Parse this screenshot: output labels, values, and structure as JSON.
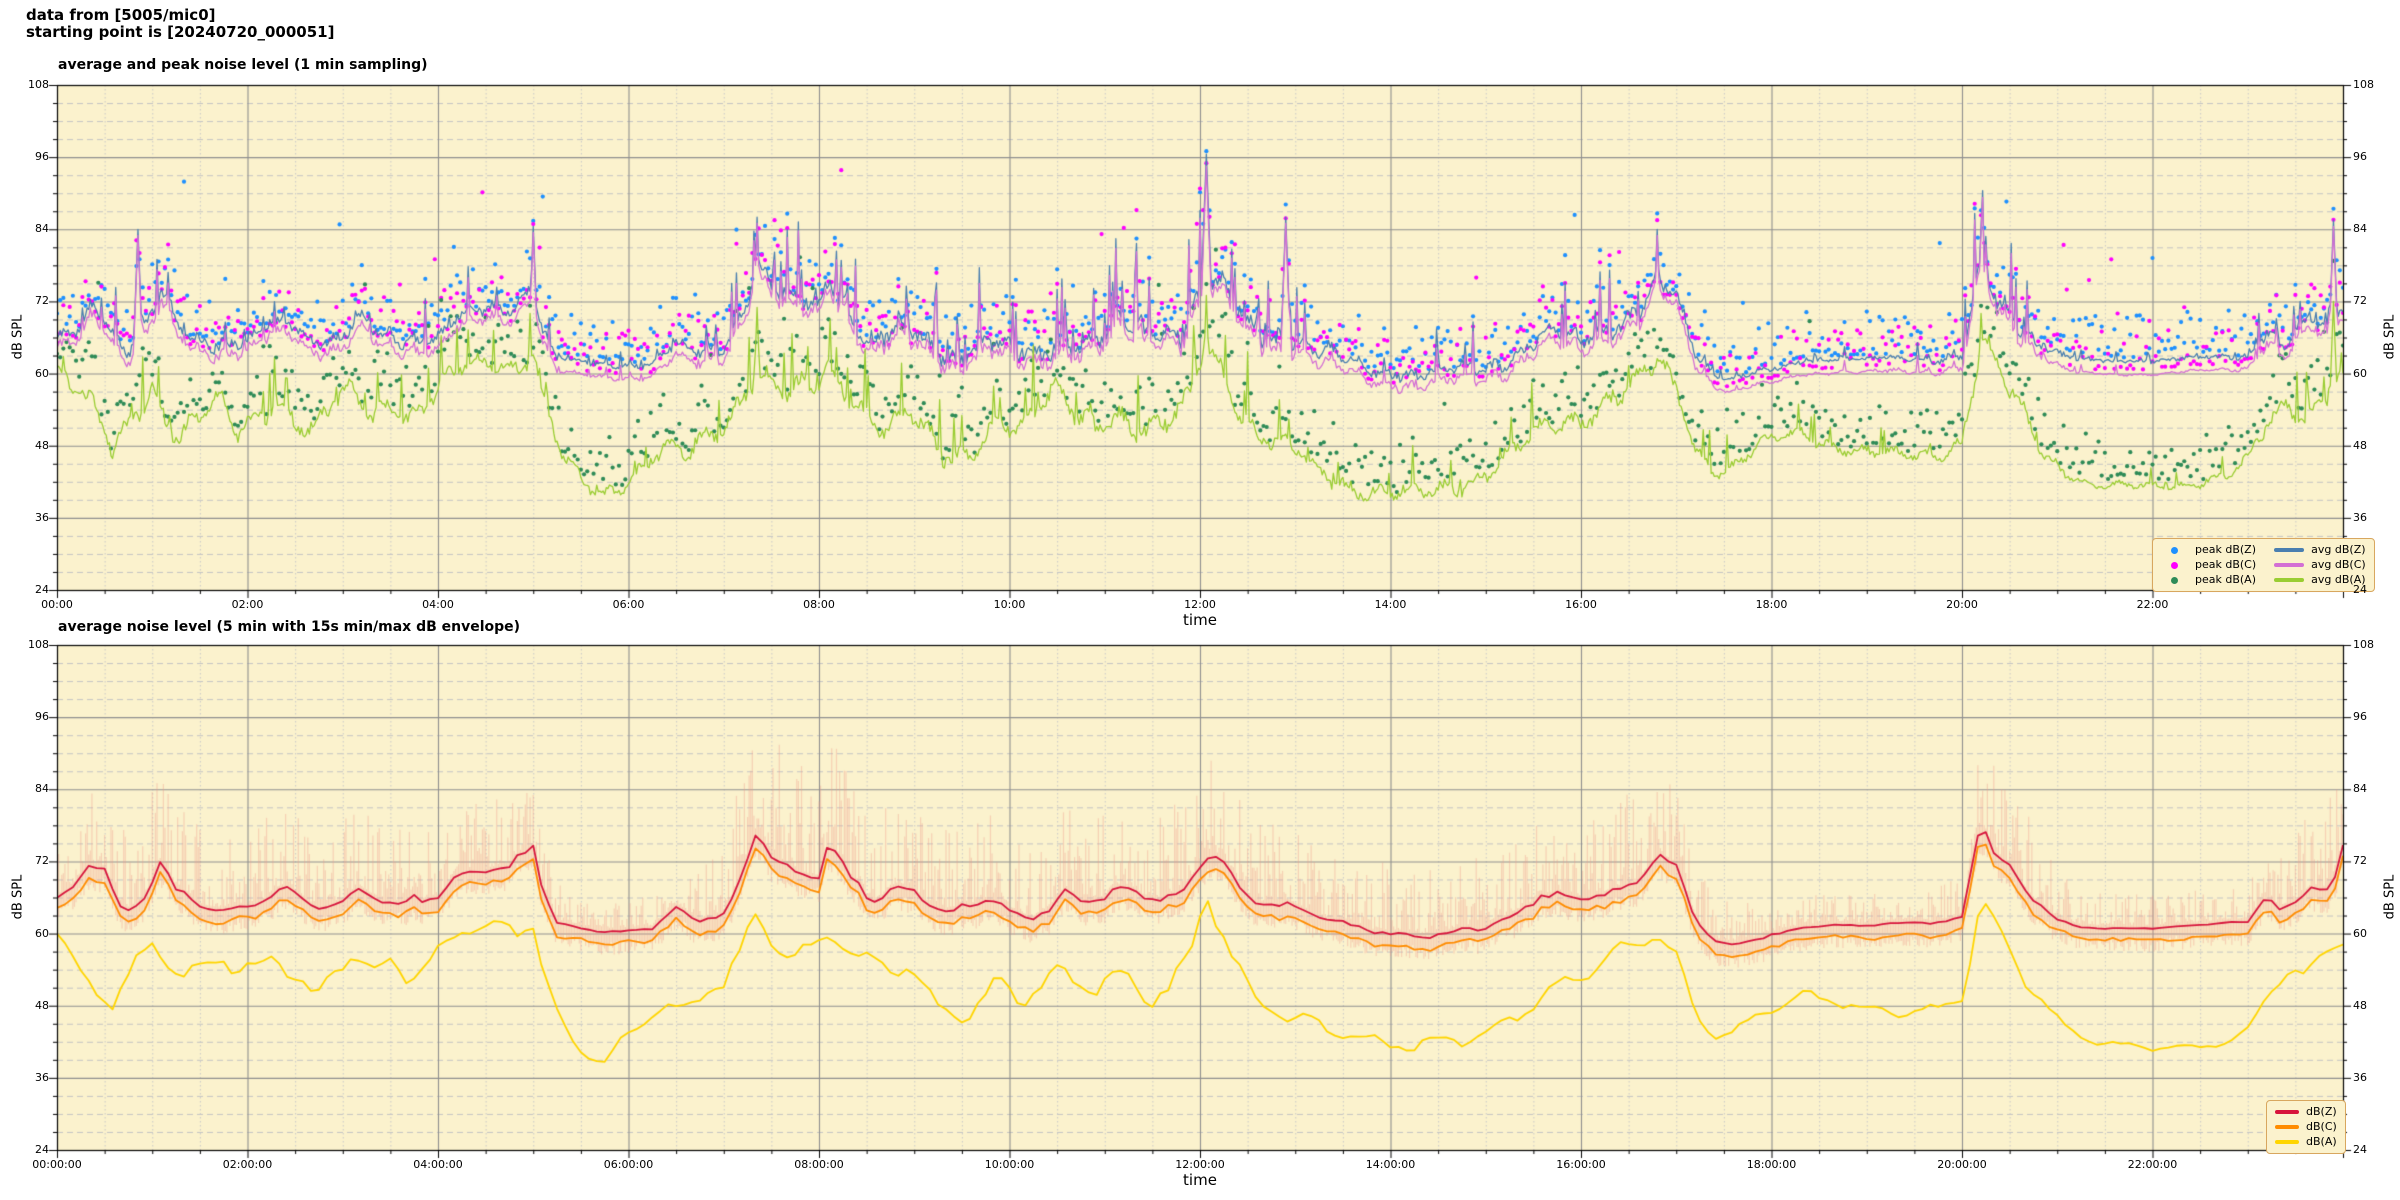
{
  "header": {
    "line1": "data from [5005/mic0]",
    "line2": "starting point is [20240720_000051]"
  },
  "palette": {
    "figure_bg": "#ffffff",
    "plot_bg": "#fbf2cd",
    "grid_major": "#8f8f8f",
    "grid_minor_h": "#c4c4c4",
    "grid_minor_v": "#c9c9c9",
    "axis": "#000000",
    "legend_bg": "#fbf2cd",
    "legend_border": "#d8a75f",
    "envelope": "#ee9a8c"
  },
  "profiles": {
    "avg_dbz": {
      "hours": [
        0,
        0.2,
        0.35,
        0.5,
        0.7,
        0.9,
        1.1,
        1.25,
        1.5,
        1.75,
        2,
        2.2,
        2.4,
        2.6,
        2.8,
        3,
        3.2,
        3.4,
        3.6,
        3.8,
        4,
        4.2,
        4.5,
        4.8,
        5,
        5.1,
        5.25,
        5.5,
        5.75,
        6,
        6.25,
        6.5,
        6.7,
        7,
        7.2,
        7.35,
        7.5,
        7.7,
        7.85,
        8,
        8.1,
        8.25,
        8.4,
        8.6,
        8.8,
        9,
        9.2,
        9.4,
        9.6,
        9.8,
        10,
        10.2,
        10.4,
        10.6,
        10.8,
        11,
        11.2,
        11.4,
        11.6,
        11.8,
        12,
        12.1,
        12.25,
        12.4,
        12.6,
        12.8,
        13,
        13.2,
        13.5,
        13.8,
        14,
        14.3,
        14.6,
        15,
        15.3,
        15.5,
        15.7,
        16,
        16.3,
        16.6,
        16.8,
        17,
        17.2,
        17.4,
        17.6,
        17.8,
        18,
        18.3,
        18.6,
        19,
        19.4,
        19.8,
        20,
        20.2,
        20.35,
        20.5,
        20.7,
        20.9,
        21,
        21.2,
        21.5,
        22,
        22.5,
        23,
        23.2,
        23.35,
        23.5,
        23.7,
        23.85,
        24
      ],
      "db": [
        66,
        68,
        72.5,
        71,
        64,
        66,
        73.5,
        68,
        65.5,
        64.5,
        64.5,
        66.5,
        68,
        66,
        65,
        66,
        68.5,
        66,
        65.5,
        66,
        66.5,
        70,
        71,
        71.5,
        75.5,
        68,
        62.5,
        61.5,
        61,
        61,
        61.5,
        64.5,
        62.5,
        63.5,
        70,
        78,
        74,
        71.5,
        70.5,
        70.5,
        76,
        72,
        68,
        66,
        67.5,
        67,
        65,
        64,
        65.5,
        67,
        64.5,
        63.5,
        65,
        67,
        65.5,
        66.5,
        68,
        66,
        66.5,
        67,
        72.5,
        74.5,
        73,
        69,
        66,
        65.5,
        65,
        63.5,
        62,
        61,
        60.5,
        60,
        61,
        62,
        63.5,
        65.5,
        67,
        66,
        67.5,
        69,
        74.5,
        72,
        63,
        59.5,
        58.5,
        59.5,
        60,
        61.5,
        62,
        62,
        62.5,
        62.5,
        63,
        79.5,
        73,
        71,
        67,
        64.5,
        63,
        61.8,
        61.5,
        61.5,
        62,
        62.5,
        67,
        64.5,
        66,
        69.5,
        68,
        73
      ]
    },
    "avg_dba": {
      "hours": [
        0,
        0.2,
        0.4,
        0.6,
        0.8,
        1,
        1.15,
        1.3,
        1.5,
        1.7,
        1.9,
        2.1,
        2.3,
        2.5,
        2.7,
        2.9,
        3.1,
        3.3,
        3.5,
        3.7,
        3.9,
        4.1,
        4.3,
        4.6,
        4.85,
        5,
        5.1,
        5.3,
        5.5,
        5.75,
        6,
        6.2,
        6.4,
        6.6,
        6.8,
        7,
        7.2,
        7.35,
        7.5,
        7.7,
        7.9,
        8.1,
        8.3,
        8.5,
        8.7,
        8.9,
        9.1,
        9.3,
        9.5,
        9.7,
        9.9,
        10.1,
        10.3,
        10.5,
        10.7,
        10.9,
        11.1,
        11.3,
        11.5,
        11.7,
        11.9,
        12.05,
        12.2,
        12.4,
        12.6,
        12.8,
        13,
        13.3,
        13.6,
        13.9,
        14.2,
        14.5,
        14.8,
        15.1,
        15.4,
        15.7,
        16,
        16.3,
        16.6,
        16.8,
        17,
        17.2,
        17.4,
        17.6,
        17.8,
        18,
        18.3,
        18.6,
        19,
        19.4,
        19.8,
        20,
        20.2,
        20.35,
        20.5,
        20.7,
        20.9,
        21.1,
        21.4,
        21.7,
        22,
        22.4,
        22.8,
        23,
        23.2,
        23.4,
        23.6,
        23.8,
        24
      ],
      "db": [
        59.5,
        57,
        53,
        47.5,
        55,
        59,
        54,
        50,
        53.5,
        56,
        52,
        54.5,
        57.5,
        53,
        50,
        55,
        57,
        53.5,
        55.5,
        52,
        54,
        57.5,
        60.5,
        61.5,
        60.5,
        62.5,
        55,
        45,
        41,
        39.5,
        42.5,
        45.5,
        48,
        46,
        49,
        52,
        58,
        63,
        60,
        57.5,
        58.5,
        61,
        59,
        55,
        52.5,
        54,
        50,
        45.5,
        46,
        49,
        53,
        50,
        52.5,
        55,
        52,
        50.5,
        53,
        50,
        48,
        50.5,
        54,
        66.5,
        62,
        55,
        50,
        48,
        47,
        44.5,
        42.5,
        41,
        40.5,
        41.5,
        43,
        45,
        48,
        51,
        52.5,
        55,
        57,
        60,
        56,
        47,
        43.5,
        44,
        46.5,
        48,
        50,
        48.5,
        47,
        46.5,
        48,
        50,
        67.5,
        62,
        58,
        52,
        47,
        44,
        41.5,
        41,
        41,
        41.5,
        42.5,
        44,
        50,
        54,
        52,
        56,
        58.5
      ]
    },
    "spikiness_c": {
      "hours": [
        0,
        0.5,
        1,
        2,
        3,
        4,
        4.7,
        5.05,
        5.3,
        6,
        6.6,
        7,
        7.5,
        8,
        9,
        10,
        11,
        11.9,
        12.3,
        12.8,
        13.2,
        14,
        15,
        16,
        16.8,
        17.2,
        17.6,
        18,
        19,
        19.95,
        20.15,
        20.8,
        21.1,
        21.5,
        22,
        22.8,
        23.15,
        23.5,
        24
      ],
      "values": [
        0.65,
        0.6,
        0.6,
        0.55,
        0.5,
        0.5,
        0.55,
        0.5,
        0.18,
        0.2,
        0.4,
        0.6,
        0.8,
        0.85,
        0.8,
        0.75,
        0.8,
        0.95,
        0.9,
        0.7,
        0.55,
        0.45,
        0.55,
        0.65,
        0.75,
        0.4,
        0.2,
        0.15,
        0.15,
        0.3,
        0.95,
        0.6,
        0.15,
        0.1,
        0.1,
        0.12,
        0.5,
        0.65,
        0.75
      ]
    },
    "spikiness_a": {
      "hours": [
        0,
        0.5,
        1,
        2,
        3,
        4,
        4.7,
        5.05,
        5.3,
        6,
        6.6,
        7,
        7.5,
        8,
        9,
        10,
        11,
        11.9,
        12.3,
        12.8,
        13.2,
        14,
        15,
        16,
        16.8,
        17.2,
        17.6,
        18,
        19,
        19.95,
        20.15,
        20.8,
        21.1,
        21.5,
        22,
        22.8,
        23.15,
        23.5,
        24
      ],
      "values": [
        0.75,
        0.7,
        0.7,
        0.7,
        0.65,
        0.6,
        0.5,
        0.5,
        0.5,
        0.5,
        0.55,
        0.65,
        0.8,
        0.8,
        0.75,
        0.7,
        0.75,
        0.9,
        0.85,
        0.7,
        0.6,
        0.5,
        0.55,
        0.65,
        0.7,
        0.5,
        0.4,
        0.4,
        0.35,
        0.4,
        0.9,
        0.6,
        0.3,
        0.25,
        0.25,
        0.3,
        0.55,
        0.6,
        0.7
      ]
    },
    "envelope_amp": {
      "hours": [
        0,
        1,
        2,
        3,
        4,
        5,
        5.4,
        6.5,
        7,
        7.4,
        8,
        8.6,
        9.5,
        10.5,
        11.5,
        12.2,
        13,
        14,
        15,
        16,
        16.8,
        17.4,
        18,
        19,
        20,
        20.3,
        21,
        22,
        23,
        23.5,
        24
      ],
      "values": [
        16,
        15,
        13,
        13,
        12,
        12,
        4,
        5,
        12,
        20,
        18,
        16,
        14,
        13,
        15,
        17,
        12,
        11,
        12,
        14,
        15,
        7,
        5,
        5,
        6,
        20,
        8,
        5,
        6,
        12,
        15
      ]
    },
    "events_avg_dbz": [
      [
        0.85,
        84
      ],
      [
        5.0,
        84.5
      ],
      [
        7.35,
        86
      ],
      [
        12.07,
        96.5
      ],
      [
        12.9,
        86
      ],
      [
        16.8,
        84
      ],
      [
        20.2,
        84.5
      ],
      [
        23.9,
        85.5
      ]
    ],
    "events_avg_dbc": [
      [
        0.85,
        83
      ],
      [
        5.0,
        83.5
      ],
      [
        7.35,
        85
      ],
      [
        12.07,
        94.5
      ],
      [
        12.9,
        85
      ],
      [
        16.8,
        83
      ],
      [
        20.2,
        83.5
      ],
      [
        23.9,
        84.5
      ]
    ],
    "events_avg_dba": [
      [
        4.97,
        70
      ],
      [
        7.35,
        71
      ],
      [
        12.07,
        73
      ],
      [
        20.2,
        70
      ],
      [
        23.9,
        72
      ]
    ]
  },
  "chart_data": [
    {
      "type": "line+scatter",
      "title": "average and peak noise level (1 min sampling)",
      "sampling": "1 min",
      "xlabel": "time",
      "ylabel": "dB SPL",
      "ylabel_right": "dB SPL",
      "ylim": [
        24,
        108
      ],
      "y_major_step": 12,
      "y_minor_step": 3,
      "x_range_hours": [
        0,
        24
      ],
      "x_major_tick_hours": 2,
      "x_minor_tick_hours": 0.5,
      "x_tick_labels": [
        "00:00",
        "02:00",
        "04:00",
        "06:00",
        "08:00",
        "10:00",
        "12:00",
        "14:00",
        "16:00",
        "18:00",
        "20:00",
        "22:00"
      ],
      "y_tick_labels": [
        "24",
        "36",
        "48",
        "60",
        "72",
        "84",
        "96",
        "108"
      ],
      "grid": true,
      "legend_position": "lower right",
      "legend_entries": [
        {
          "label": "peak dB(Z)",
          "marker": "dot",
          "color": "#1e90ff"
        },
        {
          "label": "peak dB(C)",
          "marker": "dot",
          "color": "#ff00ff"
        },
        {
          "label": "peak dB(A)",
          "marker": "dot",
          "color": "#2e8b57"
        },
        {
          "label": "avg dB(Z)",
          "marker": "line",
          "color": "#4a7fb0"
        },
        {
          "label": "avg dB(C)",
          "marker": "line",
          "color": "#d46fd4"
        },
        {
          "label": "avg dB(A)",
          "marker": "line",
          "color": "#9acd32"
        }
      ],
      "series": [
        {
          "name": "peak dB(Z)",
          "type": "scatter",
          "color": "#1e90ff",
          "derived_from": "avg dB(Z)",
          "typical_offset_db": [
            1,
            9
          ],
          "outliers_up_to_db": 96
        },
        {
          "name": "peak dB(C)",
          "type": "scatter",
          "color": "#ff00ff",
          "derived_from": "avg dB(C)",
          "typical_offset_db": [
            1,
            9
          ],
          "outliers_up_to_db": 95
        },
        {
          "name": "peak dB(A)",
          "type": "scatter",
          "color": "#2e8b57",
          "derived_from": "avg dB(A)",
          "typical_offset_db": [
            1,
            9
          ],
          "outliers_up_to_db": 92
        },
        {
          "name": "avg dB(Z)",
          "type": "line",
          "color": "#4a7fb0",
          "profile": "avg_dbz",
          "spikiness": "spikiness_c",
          "events": "events_avg_dbz",
          "offset_above_dbc_quiet": 2,
          "range_db": [
            58.5,
            96.5
          ]
        },
        {
          "name": "avg dB(C)",
          "type": "line",
          "color": "#d46fd4",
          "profile": "avg_dbz",
          "profile_offset_db": -1.7,
          "spikiness": "spikiness_c",
          "events": "events_avg_dbc",
          "range_db": [
            57,
            94.5
          ]
        },
        {
          "name": "avg dB(A)",
          "type": "line",
          "color": "#9acd32",
          "profile": "avg_dba",
          "spikiness": "spikiness_a",
          "events": "events_avg_dba",
          "range_db": [
            37,
            73
          ]
        }
      ]
    },
    {
      "type": "line+envelope",
      "title": "average noise level (5 min with 15s min/max dB envelope)",
      "sampling": "5 min",
      "xlabel": "time",
      "ylabel": "dB SPL",
      "ylabel_right": "dB SPL",
      "ylim": [
        24,
        108
      ],
      "y_major_step": 12,
      "y_minor_step": 3,
      "x_range_hours": [
        0,
        24
      ],
      "x_major_tick_hours": 2,
      "x_minor_tick_hours": 0.5,
      "x_tick_labels": [
        "00:00:00",
        "02:00:00",
        "04:00:00",
        "06:00:00",
        "08:00:00",
        "10:00:00",
        "12:00:00",
        "14:00:00",
        "16:00:00",
        "18:00:00",
        "20:00:00",
        "22:00:00"
      ],
      "y_tick_labels": [
        "24",
        "36",
        "48",
        "60",
        "72",
        "84",
        "96",
        "108"
      ],
      "grid": true,
      "legend_position": "lower right",
      "legend_entries": [
        {
          "label": "dB(Z)",
          "marker": "line",
          "color": "#d7143c"
        },
        {
          "label": "dB(C)",
          "marker": "line",
          "color": "#ff8c00"
        },
        {
          "label": "dB(A)",
          "marker": "line",
          "color": "#ffd500"
        }
      ],
      "series": [
        {
          "name": "dB(Z)",
          "type": "line",
          "color": "#d7143c",
          "profile": "avg_dbz",
          "spikiness": "spikiness_c",
          "range_db": [
            58.5,
            80
          ]
        },
        {
          "name": "dB(C)",
          "type": "line",
          "color": "#ff8c00",
          "profile": "avg_dbz",
          "profile_offset_db": -1.8,
          "range_db": [
            56.5,
            78
          ]
        },
        {
          "name": "dB(A)",
          "type": "line",
          "color": "#ffd500",
          "profile": "avg_dba",
          "spikiness": "spikiness_a",
          "range_db": [
            38,
            68
          ]
        },
        {
          "name": "15s min/max envelope",
          "type": "envelope",
          "around": "dB(Z)",
          "color": "#ee9a8c",
          "alpha": 0.38,
          "amp_profile": "envelope_amp",
          "max_reach_db": 96
        }
      ]
    }
  ]
}
